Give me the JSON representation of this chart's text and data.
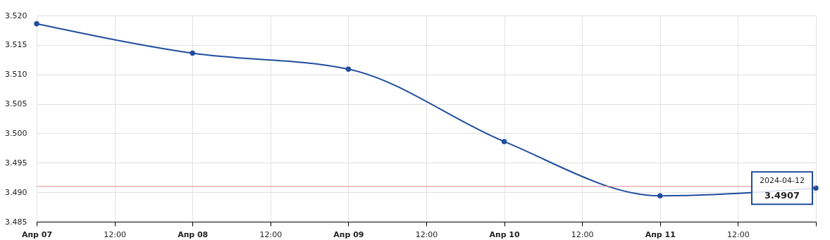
{
  "chart_data": {
    "type": "line",
    "x": [
      "2024-04-07",
      "2024-04-08",
      "2024-04-09",
      "2024-04-10",
      "2024-04-11",
      "2024-04-12"
    ],
    "series": [
      {
        "color": "#1f4e9c",
        "values": [
          3.5186,
          3.5136,
          3.5109,
          3.4986,
          3.4894,
          3.4907
        ]
      }
    ],
    "xlim": [
      "2024-04-07",
      "2024-04-12"
    ],
    "xticks": [
      {
        "value": "2024-04-07",
        "label": "Апр 07"
      },
      {
        "value": "2024-04-07T12:00",
        "label": "12:00"
      },
      {
        "value": "2024-04-08",
        "label": "Апр 08"
      },
      {
        "value": "2024-04-08T12:00",
        "label": "12:00"
      },
      {
        "value": "2024-04-09",
        "label": "Апр 09"
      },
      {
        "value": "2024-04-09T12:00",
        "label": "12:00"
      },
      {
        "value": "2024-04-10",
        "label": "Апр 10"
      },
      {
        "value": "2024-04-10T12:00",
        "label": "12:00"
      },
      {
        "value": "2024-04-11",
        "label": "Апр 11"
      },
      {
        "value": "2024-04-11T12:00",
        "label": "12:00"
      },
      {
        "value": "2024-04-12",
        "label": null
      }
    ],
    "ylim": [
      3.485,
      3.52
    ],
    "yticks": [
      {
        "value": 3.485,
        "label": "3.485"
      },
      {
        "value": 3.49,
        "label": "3.490"
      },
      {
        "value": 3.495,
        "label": "3.495"
      },
      {
        "value": 3.5,
        "label": "3.500"
      },
      {
        "value": 3.505,
        "label": "3.505"
      },
      {
        "value": 3.51,
        "label": "3.510"
      },
      {
        "value": 3.515,
        "label": "3.515"
      },
      {
        "value": 3.52,
        "label": "3.520"
      }
    ],
    "ref_lines": [
      {
        "axis": "y",
        "value": 3.491,
        "color": "#e89090"
      }
    ],
    "annotations": [
      "2024-04-12",
      "3.4907"
    ],
    "grid": true,
    "marker": "circle",
    "line_style": "solid"
  }
}
